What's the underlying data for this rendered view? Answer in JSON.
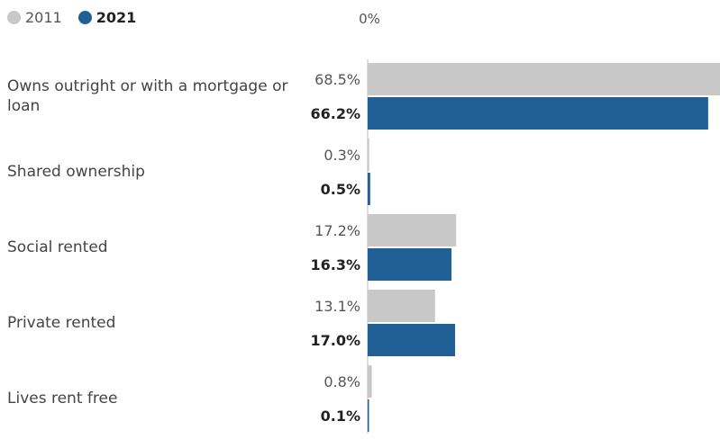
{
  "chart_data": {
    "type": "bar",
    "orientation": "horizontal",
    "axis_tick_label": "0%",
    "xlim": [
      0,
      68.5
    ],
    "categories": [
      "Owns outright or with a mortgage or loan",
      "Shared ownership",
      "Social rented",
      "Private rented",
      "Lives rent free"
    ],
    "series": [
      {
        "name": "2011",
        "color": "#c8c8c8",
        "values": [
          68.5,
          0.3,
          17.2,
          13.1,
          0.8
        ],
        "labels": [
          "68.5%",
          "0.3%",
          "17.2%",
          "13.1%",
          "0.8%"
        ]
      },
      {
        "name": "2021",
        "color": "#206095",
        "values": [
          66.2,
          0.5,
          16.3,
          17.0,
          0.1
        ],
        "labels": [
          "66.2%",
          "0.5%",
          "16.3%",
          "17.0%",
          "0.1%"
        ]
      }
    ],
    "legend_position": "top-left"
  }
}
